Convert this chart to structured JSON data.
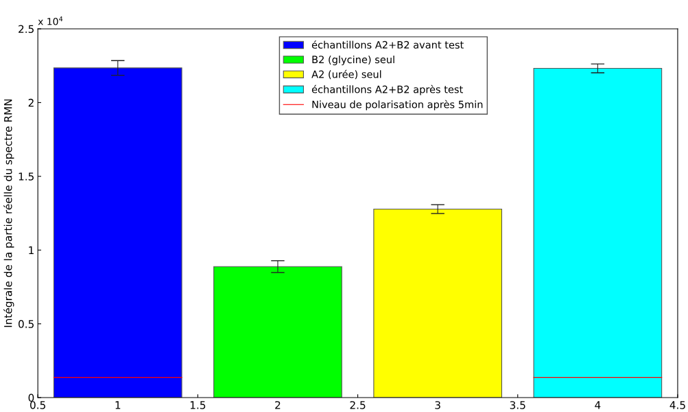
{
  "chart_data": {
    "type": "bar",
    "ylabel": "Intégrale de la partie réelle du spectre RMN",
    "annotations": [
      "x 10$^{4}$"
    ],
    "series": [
      {
        "name": "échantillons A2+B2 avant test",
        "color": "#0000ff",
        "x": [
          1
        ],
        "values": [
          2.235
        ],
        "errors": [
          0.05
        ]
      },
      {
        "name": "B2 (glycine) seul",
        "color": "#00ff00",
        "x": [
          2
        ],
        "values": [
          0.888
        ],
        "errors": [
          0.04
        ]
      },
      {
        "name": "A2 (urée) seul",
        "color": "#ffff00",
        "x": [
          3
        ],
        "values": [
          1.278
        ],
        "errors": [
          0.03
        ]
      },
      {
        "name": "échantillons A2+B2 après test",
        "color": "#00ffff",
        "x": [
          4
        ],
        "values": [
          2.232
        ],
        "errors": [
          0.03
        ]
      },
      {
        "name": "Niveau de polarisation après 5min",
        "type": "line",
        "color": "#ff0000",
        "x": [
          0.6,
          1.4,
          2.5,
          3.6,
          4.4
        ],
        "values": [
          0.137,
          0.137,
          null,
          0.137,
          0.137
        ]
      }
    ],
    "xlim": [
      0.5,
      4.5
    ],
    "xticks": [
      0.5,
      1,
      1.5,
      2,
      2.5,
      3,
      3.5,
      4,
      4.5
    ],
    "ylim": [
      0,
      2.5
    ],
    "yticks": [
      0,
      0.5,
      1,
      1.5,
      2,
      2.5
    ],
    "legend": "top"
  }
}
